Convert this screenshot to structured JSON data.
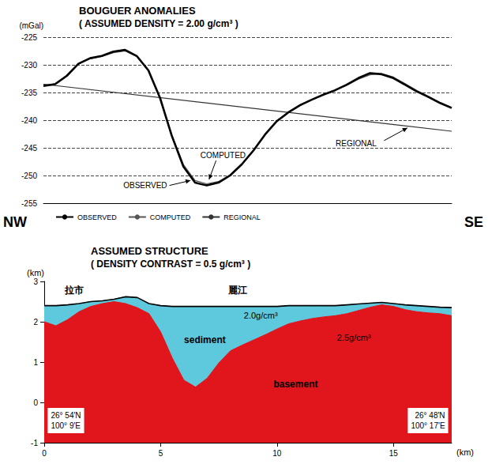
{
  "chart_data": [
    {
      "type": "line",
      "title": "BOUGUER ANOMALIES",
      "subtitle": "( ASSUMED DENSITY = 2.00 g/cm³ )",
      "y_label": "(mGal)",
      "side_labels": [
        "NW",
        "SE"
      ],
      "x": [
        0,
        0.5,
        1,
        1.5,
        2,
        2.5,
        3,
        3.5,
        4,
        4.5,
        5,
        5.5,
        6,
        6.5,
        7,
        7.5,
        8,
        8.5,
        9,
        9.5,
        10,
        10.5,
        11,
        11.5,
        12,
        12.5,
        13,
        13.5,
        14,
        14.5,
        15,
        15.5,
        16,
        16.5,
        17,
        17.5
      ],
      "series": [
        {
          "name": "OBSERVED",
          "color": "#000000",
          "values": [
            -233.8,
            -233.5,
            -232.0,
            -229.8,
            -228.8,
            -228.4,
            -227.6,
            -227.3,
            -228.4,
            -231.0,
            -236.0,
            -242.8,
            -248.4,
            -251.3,
            -251.8,
            -251.3,
            -250.0,
            -248.0,
            -245.5,
            -242.6,
            -240.2,
            -238.6,
            -237.3,
            -236.3,
            -235.4,
            -234.6,
            -233.6,
            -232.4,
            -231.5,
            -231.7,
            -232.4,
            -233.6,
            -234.8,
            -235.8,
            -236.9,
            -237.8
          ]
        },
        {
          "name": "COMPUTED",
          "color": "#555555",
          "values": [
            -233.8,
            -233.4,
            -231.9,
            -229.9,
            -228.9,
            -228.5,
            -227.8,
            -227.5,
            -228.5,
            -231.1,
            -236.1,
            -242.6,
            -248.0,
            -250.9,
            -251.5,
            -251.1,
            -249.9,
            -247.9,
            -245.4,
            -242.6,
            -240.2,
            -238.5,
            -237.2,
            -236.3,
            -235.4,
            -234.6,
            -233.7,
            -232.6,
            -231.8,
            -231.6,
            -232.2,
            -233.4,
            -234.6,
            -235.7,
            -236.8,
            -237.7
          ]
        },
        {
          "name": "REGIONAL",
          "color": "#333333",
          "x": [
            0,
            17.5
          ],
          "values": [
            -233.5,
            -242.0
          ]
        }
      ],
      "annotations": [
        "COMPUTED",
        "OBSERVED",
        "REGIONAL"
      ],
      "xlim": [
        0,
        17.5
      ],
      "ylim": [
        -255,
        -225
      ],
      "yticks": [
        -255,
        -250,
        -245,
        -240,
        -235,
        -230,
        -225
      ],
      "grid": true,
      "legend": "bottom left",
      "tick_labels": "y"
    },
    {
      "type": "area",
      "title": "ASSUMED STRUCTURE",
      "subtitle": "( DENSITY CONTRAST = 0.5 g/cm³ )",
      "x_label": "(km)",
      "y_label": "(km)",
      "x": [
        0,
        0.5,
        1,
        1.5,
        2,
        2.5,
        3,
        3.5,
        4,
        4.5,
        5,
        5.5,
        6,
        6.5,
        7,
        7.5,
        8,
        8.5,
        9,
        9.5,
        10,
        10.5,
        11,
        11.5,
        12,
        12.5,
        13,
        13.5,
        14,
        14.5,
        15,
        15.5,
        16,
        16.5,
        17,
        17.5
      ],
      "series": [
        {
          "color": "#5ec8dc",
          "values": [
            2.4,
            2.4,
            2.42,
            2.45,
            2.5,
            2.52,
            2.56,
            2.62,
            2.6,
            2.45,
            2.4,
            2.38,
            2.38,
            2.38,
            2.38,
            2.38,
            2.38,
            2.38,
            2.38,
            2.38,
            2.38,
            2.4,
            2.4,
            2.4,
            2.4,
            2.4,
            2.42,
            2.44,
            2.46,
            2.48,
            2.45,
            2.42,
            2.4,
            2.38,
            2.36,
            2.35
          ]
        },
        {
          "color": "#e0161c",
          "values": [
            2.0,
            1.9,
            2.05,
            2.25,
            2.38,
            2.45,
            2.5,
            2.45,
            2.35,
            2.2,
            1.75,
            1.1,
            0.55,
            0.38,
            0.6,
            0.98,
            1.28,
            1.42,
            1.55,
            1.68,
            1.82,
            1.95,
            2.02,
            2.08,
            2.12,
            2.15,
            2.2,
            2.28,
            2.36,
            2.42,
            2.38,
            2.3,
            2.25,
            2.22,
            2.2,
            2.15
          ]
        }
      ],
      "annotations": [
        "拉市",
        "麗江",
        "2.0g/cm³",
        "sediment",
        "2.5g/cm³",
        "basement"
      ],
      "corner_labels": [
        [
          "26° 54'N",
          "100° 9'E"
        ],
        [
          "26° 48'N",
          "100° 17'E"
        ]
      ],
      "xlim": [
        0,
        17.5
      ],
      "xticks": [
        0,
        5,
        10,
        15
      ],
      "ylim": [
        -1,
        3
      ],
      "yticks": [
        -1,
        0,
        1,
        2,
        3
      ],
      "grid": false
    }
  ]
}
